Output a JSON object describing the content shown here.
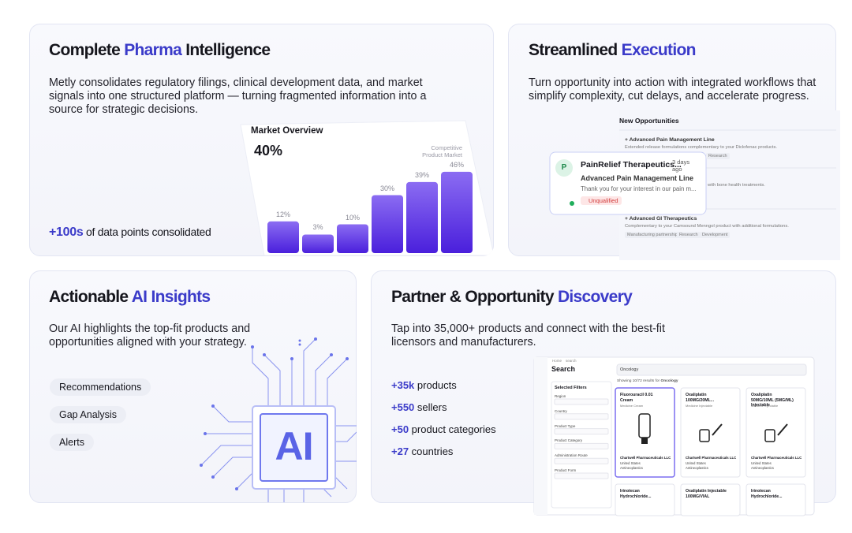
{
  "intelligence": {
    "title_pre": "Complete ",
    "title_accent": "Pharma",
    "title_post": " Intelligence",
    "body": "Metly consolidates regulatory filings, clinical development data, and market signals into one structured platform — turning fragmented information into a source for strategic decisions.",
    "stat_value": "+100s",
    "stat_text": " of data points consolidated",
    "chart": {
      "title": "Market Overview",
      "headline": "40%",
      "legend": "Competitive Product Market",
      "values": [
        12,
        3,
        10,
        30,
        39,
        46
      ],
      "value_labels": [
        "12%",
        "3%",
        "10%",
        "30%",
        "39%",
        "46%"
      ]
    }
  },
  "execution": {
    "title_pre": "Streamlined ",
    "title_accent": "Execution",
    "body": "Turn opportunity into action with integrated workflows that simplify complexity, cut delays, and accelerate progress.",
    "panel": {
      "heading": "New Opportunities",
      "rows": [
        {
          "title": "+ Advanced Pain Management Line",
          "desc": "Extended release formulations complementary to your Diclofenac products.",
          "tags": [
            "Research"
          ]
        },
        {
          "desc": "with bone health treatments."
        },
        {
          "title": "+ Advanced GI Therapeutics",
          "desc": "Complementary to your Camsound Menngol product with additional formulations.",
          "tags": [
            "Manufacturing partnership",
            "Research",
            "Development"
          ]
        }
      ]
    },
    "popup": {
      "avatar": "P",
      "name": "PainRelief Therapeutics...",
      "time": "3 days ago",
      "subject": "Advanced Pain Management Line",
      "message": "Thank you for your interest in our pain m...",
      "status": "Unqualified"
    }
  },
  "insights": {
    "title_pre": "Actionable ",
    "title_accent": "AI Insights",
    "body": "Our AI highlights the top-fit products and opportunities aligned with your strategy.",
    "pills": [
      "Recommendations",
      "Gap Analysis",
      "Alerts"
    ],
    "chip_label": "AI"
  },
  "discovery": {
    "title_pre": "Partner & Opportunity ",
    "title_accent": "Discovery",
    "body": "Tap into 35,000+ products and connect with the best-fit licensors and manufacturers.",
    "stats": [
      {
        "value": "+35k",
        "label": " products"
      },
      {
        "value": "+550",
        "label": " sellers"
      },
      {
        "value": "+50",
        "label": " product categories"
      },
      {
        "value": "+27",
        "label": " countries"
      }
    ],
    "screen": {
      "breadcrumb": [
        "Home",
        "search"
      ],
      "heading": "Search",
      "query": "Oncology",
      "results_text": "Showing 10/72 results for ",
      "results_query": "Oncology",
      "filters_title": "Selected Filters",
      "filters": [
        "Region",
        "Country",
        "Product Type",
        "Product Category",
        "Administration Route",
        "Product Form"
      ],
      "products": [
        {
          "name": "Fluorouracil 0.01 Cream",
          "type": "Medicine Cream",
          "company": "Chartwell Pharmaceuticals LLC",
          "country": "United States",
          "class": "Antineoplastics"
        },
        {
          "name": "Oxaliplatin 100MG/20ML...",
          "type": "Medicine Injectable",
          "company": "Chartwell Pharmaceuticals LLC",
          "country": "United States",
          "class": "Antineoplastics"
        },
        {
          "name": "Oxaliplatin 50MG/10ML (5MG/ML) Injectable",
          "type": "Medicine Injectable",
          "company": "Chartwell Pharmaceuticals LLC",
          "country": "United States",
          "class": "Antineoplastics"
        }
      ],
      "more_products": [
        "Irinotecan Hydrochloride...",
        "Oxaliplatin Injectable 100MG/VIAL",
        "Irinotecan Hydrochloride..."
      ]
    }
  }
}
